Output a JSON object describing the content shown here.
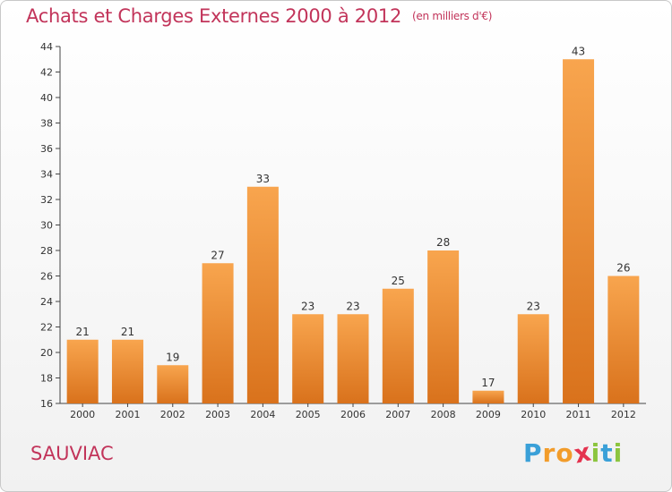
{
  "header": {
    "title": "Achats et Charges Externes 2000 à 2012",
    "subtitle": "(en milliers d'€)"
  },
  "footer": {
    "commune": "SAUVIAC",
    "logo_letters": [
      "P",
      "r",
      "o",
      "x",
      "i",
      "t",
      "i"
    ],
    "logo_colors": [
      "#3aa0d8",
      "#f29c2a",
      "#f29c2a",
      "#e4334f",
      "#8cc53f",
      "#3aa0d8",
      "#8cc53f"
    ]
  },
  "colors": {
    "bar_top": "#f8a54e",
    "bar_bottom": "#d9721c",
    "text": "#333333",
    "accent": "#c2345a"
  },
  "chart_data": {
    "type": "bar",
    "title": "Achats et Charges Externes 2000 à 2012",
    "subtitle": "(en milliers d'€)",
    "categories": [
      "2000",
      "2001",
      "2002",
      "2003",
      "2004",
      "2005",
      "2006",
      "2007",
      "2008",
      "2009",
      "2010",
      "2011",
      "2012"
    ],
    "values": [
      21,
      21,
      19,
      27,
      33,
      23,
      23,
      25,
      28,
      17,
      23,
      43,
      26
    ],
    "ylim": [
      16,
      44
    ],
    "yticks": [
      16,
      18,
      20,
      22,
      24,
      26,
      28,
      30,
      32,
      34,
      36,
      38,
      40,
      42,
      44
    ],
    "grid": false,
    "legend": "none"
  }
}
